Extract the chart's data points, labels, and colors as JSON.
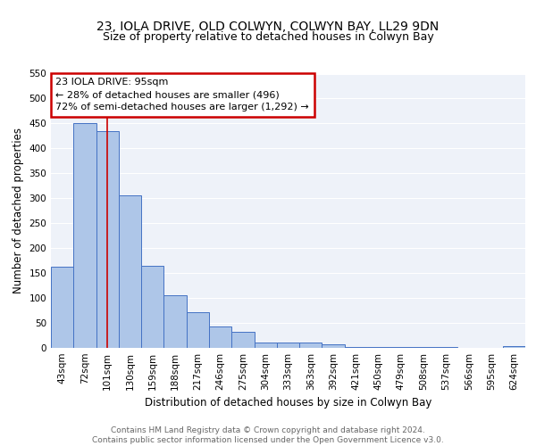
{
  "title": "23, IOLA DRIVE, OLD COLWYN, COLWYN BAY, LL29 9DN",
  "subtitle": "Size of property relative to detached houses in Colwyn Bay",
  "xlabel": "Distribution of detached houses by size in Colwyn Bay",
  "ylabel": "Number of detached properties",
  "categories": [
    "43sqm",
    "72sqm",
    "101sqm",
    "130sqm",
    "159sqm",
    "188sqm",
    "217sqm",
    "246sqm",
    "275sqm",
    "304sqm",
    "333sqm",
    "363sqm",
    "392sqm",
    "421sqm",
    "450sqm",
    "479sqm",
    "508sqm",
    "537sqm",
    "566sqm",
    "595sqm",
    "624sqm"
  ],
  "values": [
    163,
    450,
    435,
    305,
    165,
    105,
    72,
    43,
    33,
    11,
    10,
    10,
    8,
    2,
    2,
    1,
    1,
    1,
    0,
    0,
    4
  ],
  "bar_color": "#aec6e8",
  "bar_edge_color": "#4472c4",
  "vline_x": 2,
  "vline_color": "#cc0000",
  "annotation_text": "23 IOLA DRIVE: 95sqm\n← 28% of detached houses are smaller (496)\n72% of semi-detached houses are larger (1,292) →",
  "annotation_box_color": "#cc0000",
  "ylim": [
    0,
    550
  ],
  "yticks": [
    0,
    50,
    100,
    150,
    200,
    250,
    300,
    350,
    400,
    450,
    500,
    550
  ],
  "footer": "Contains HM Land Registry data © Crown copyright and database right 2024.\nContains public sector information licensed under the Open Government Licence v3.0.",
  "bg_color": "#eef2f9",
  "grid_color": "#ffffff",
  "title_fontsize": 10,
  "subtitle_fontsize": 9,
  "tick_fontsize": 7.5,
  "label_fontsize": 8.5,
  "footer_fontsize": 6.5,
  "ann_fontsize": 8
}
